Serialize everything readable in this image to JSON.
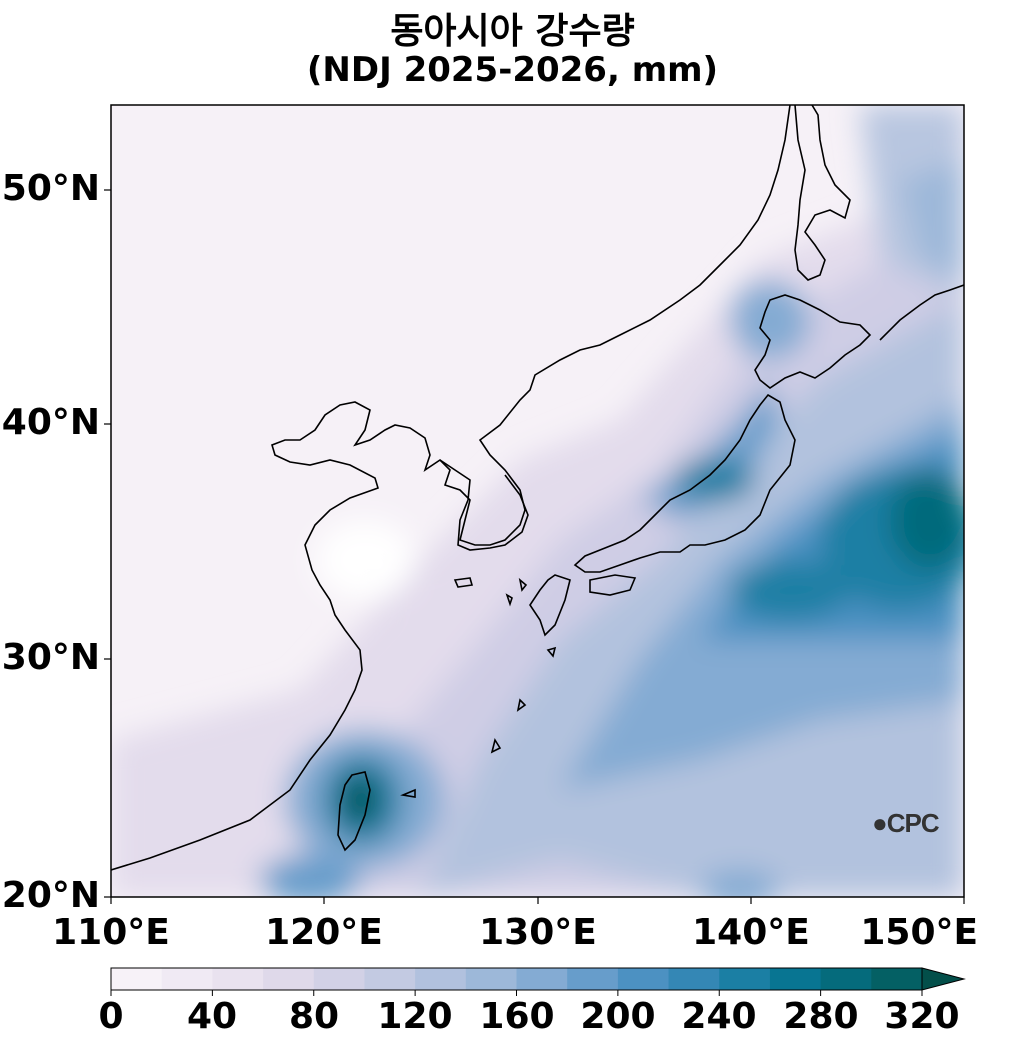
{
  "title": "동아시아 강수량",
  "subtitle": "(NDJ 2025-2026, mm)",
  "map": {
    "lon_range": [
      110,
      150
    ],
    "lat_range": [
      20,
      54
    ],
    "x_ticks": [
      "110°E",
      "120°E",
      "130°E",
      "140°E",
      "150°E"
    ],
    "y_ticks": [
      "50°N",
      "40°N",
      "30°N",
      "20°N"
    ]
  },
  "colorbar": {
    "labels": [
      "0",
      "40",
      "80",
      "120",
      "160",
      "200",
      "240",
      "280",
      "320"
    ],
    "levels": [
      0,
      20,
      40,
      60,
      80,
      100,
      120,
      140,
      160,
      180,
      200,
      220,
      240,
      260,
      280,
      300,
      320
    ],
    "extend": "max",
    "colors": [
      "#f7f2f8",
      "#f0eaf4",
      "#e9e2ef",
      "#dfd9ea",
      "#d2d1e6",
      "#c3cae2",
      "#b1c1de",
      "#9db8d9",
      "#84abd3",
      "#679dcb",
      "#4c91c2",
      "#3487b5",
      "#1b7fa4",
      "#087592",
      "#056b7c",
      "#046064",
      "#034f4a"
    ]
  },
  "logo": {
    "text": "CPC"
  }
}
